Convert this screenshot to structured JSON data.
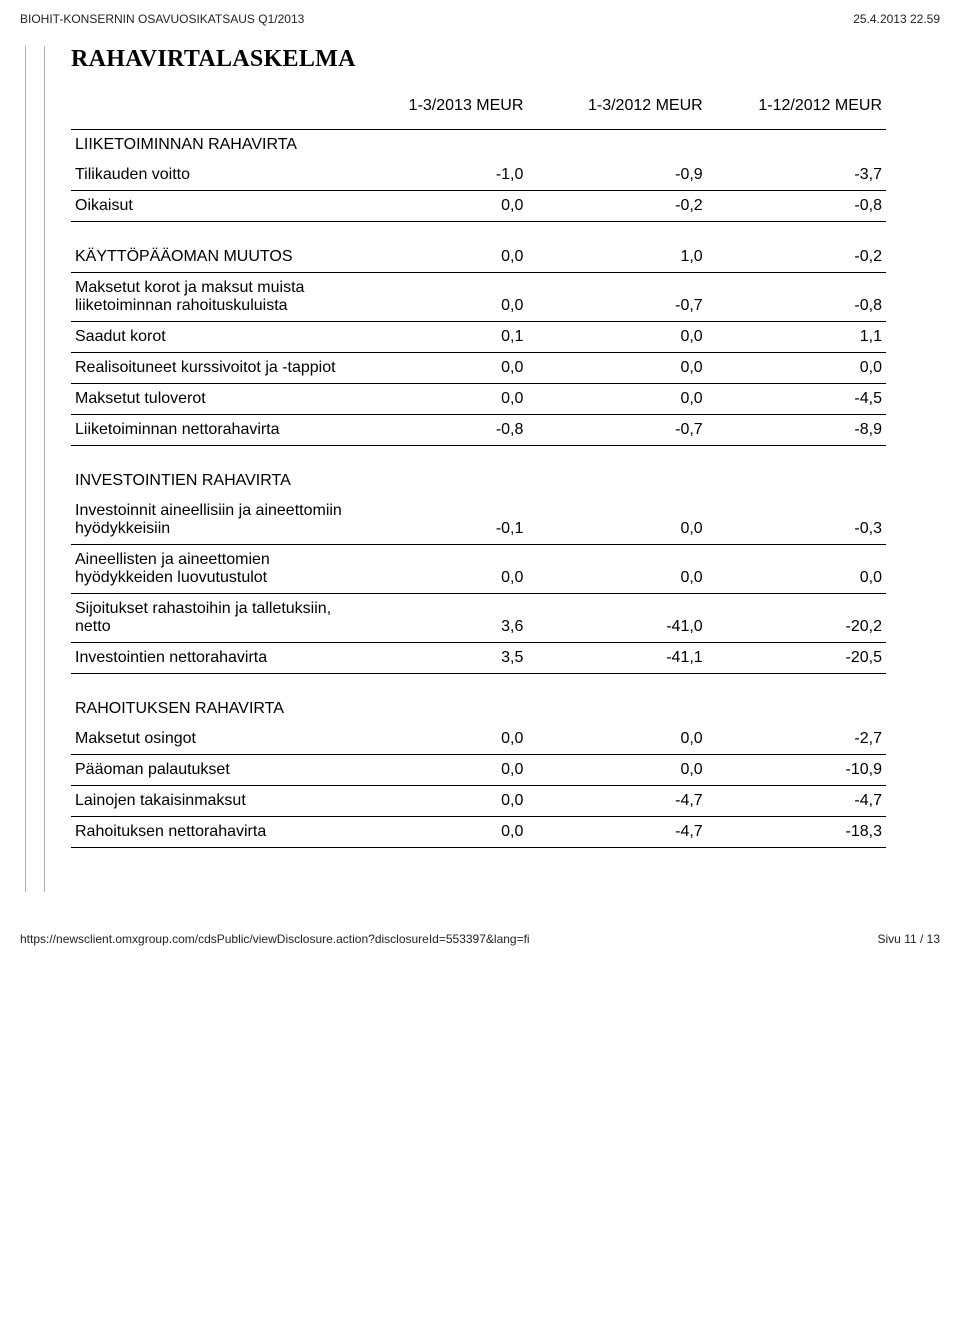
{
  "header": {
    "left": "BIOHIT-KONSERNIN OSAVUOSIKATSAUS Q1/2013",
    "right": "25.4.2013 22.59"
  },
  "title": "RAHAVIRTALASKELMA",
  "columns": [
    "1-3/2013 MEUR",
    "1-3/2012 MEUR",
    "1-12/2012 MEUR"
  ],
  "sections": {
    "operating": {
      "title": "LIIKETOIMINNAN RAHAVIRTA",
      "rows": [
        {
          "label": "Tilikauden voitto",
          "values": [
            "-1,0",
            "-0,9",
            "-3,7"
          ]
        },
        {
          "label": "Oikaisut",
          "values": [
            "0,0",
            "-0,2",
            "-0,8"
          ]
        }
      ],
      "rows2": [
        {
          "label": "KÄYTTÖPÄÄOMAN MUUTOS",
          "values": [
            "0,0",
            "1,0",
            "-0,2"
          ]
        },
        {
          "label": "Maksetut korot ja maksut muista liiketoiminnan rahoituskuluista",
          "values": [
            "0,0",
            "-0,7",
            "-0,8"
          ]
        },
        {
          "label": "Saadut korot",
          "values": [
            "0,1",
            "0,0",
            "1,1"
          ]
        },
        {
          "label": "Realisoituneet kurssivoitot ja -tappiot",
          "values": [
            "0,0",
            "0,0",
            "0,0"
          ]
        },
        {
          "label": "Maksetut tuloverot",
          "values": [
            "0,0",
            "0,0",
            "-4,5"
          ]
        },
        {
          "label": "Liiketoiminnan nettorahavirta",
          "values": [
            "-0,8",
            "-0,7",
            "-8,9"
          ]
        }
      ]
    },
    "investing": {
      "title": "INVESTOINTIEN RAHAVIRTA",
      "rows": [
        {
          "label": "Investoinnit aineellisiin ja aineettomiin hyödykkeisiin",
          "values": [
            "-0,1",
            "0,0",
            "-0,3"
          ]
        },
        {
          "label": "Aineellisten ja aineettomien hyödykkeiden luovutustulot",
          "values": [
            "0,0",
            "0,0",
            "0,0"
          ]
        },
        {
          "label": "Sijoitukset rahastoihin ja talletuksiin, netto",
          "values": [
            "3,6",
            "-41,0",
            "-20,2"
          ]
        },
        {
          "label": "Investointien nettorahavirta",
          "values": [
            "3,5",
            "-41,1",
            "-20,5"
          ]
        }
      ]
    },
    "financing": {
      "title": "RAHOITUKSEN RAHAVIRTA",
      "rows": [
        {
          "label": "Maksetut osingot",
          "values": [
            "0,0",
            "0,0",
            "-2,7"
          ]
        },
        {
          "label": "Pääoman palautukset",
          "values": [
            "0,0",
            "0,0",
            "-10,9"
          ]
        },
        {
          "label": "Lainojen takaisinmaksut",
          "values": [
            "0,0",
            "-4,7",
            "-4,7"
          ]
        },
        {
          "label": "Rahoituksen nettorahavirta",
          "values": [
            "0,0",
            "-4,7",
            "-18,3"
          ]
        }
      ]
    }
  },
  "footer": {
    "left": "https://newsclient.omxgroup.com/cdsPublic/viewDisclosure.action?disclosureId=553397&lang=fi",
    "right": "Sivu 11 / 13"
  },
  "style": {
    "text_color": "#000000",
    "border_color": "#000000",
    "side_border_color": "#b0b0b0",
    "font_size_body": 16,
    "font_size_header": 12,
    "title_font": "Times New Roman"
  }
}
